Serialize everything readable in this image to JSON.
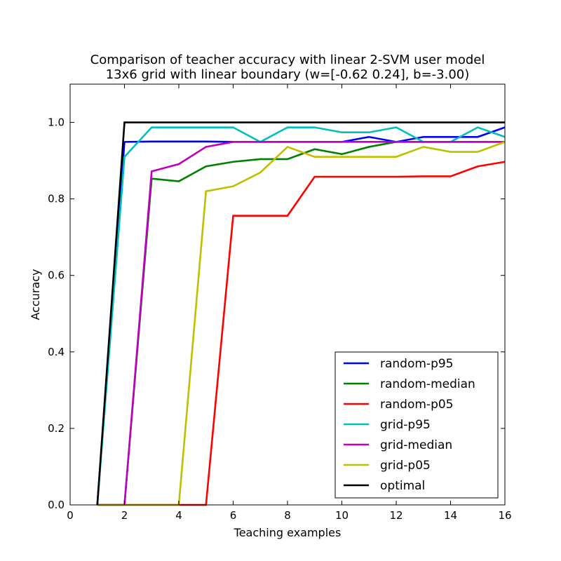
{
  "chart_data": {
    "type": "line",
    "title": "Comparison of teacher accuracy with linear 2-SVM user model",
    "subtitle": "13x6 grid with linear boundary (w=[-0.62  0.24], b=-3.00)",
    "xlabel": "Teaching examples",
    "ylabel": "Accuracy",
    "xlim": [
      0,
      16
    ],
    "ylim": [
      0.0,
      1.1
    ],
    "xticks": [
      0,
      2,
      4,
      6,
      8,
      10,
      12,
      14,
      16
    ],
    "xtick_labels": [
      "0",
      "2",
      "4",
      "6",
      "8",
      "10",
      "12",
      "14",
      "16"
    ],
    "yticks": [
      0.0,
      0.2,
      0.4,
      0.6,
      0.8,
      1.0
    ],
    "ytick_labels": [
      "0.0",
      "0.2",
      "0.4",
      "0.6",
      "0.8",
      "1.0"
    ],
    "grid": false,
    "legend_position": "lower-right",
    "x": [
      1,
      2,
      3,
      4,
      5,
      6,
      7,
      8,
      9,
      10,
      11,
      12,
      13,
      14,
      15,
      16
    ],
    "series": [
      {
        "name": "random-p95",
        "color": "#0000ff",
        "values": [
          0.0,
          0.949,
          0.95,
          0.95,
          0.95,
          0.949,
          0.949,
          0.949,
          0.949,
          0.949,
          0.962,
          0.949,
          0.962,
          0.962,
          0.962,
          0.987
        ]
      },
      {
        "name": "random-median",
        "color": "#008000",
        "values": [
          0.0,
          0.0,
          0.853,
          0.846,
          0.885,
          0.897,
          0.904,
          0.904,
          0.93,
          0.917,
          0.936,
          0.949,
          0.949,
          0.949,
          0.949,
          0.949
        ]
      },
      {
        "name": "random-p05",
        "color": "#ff0000",
        "values": [
          0.0,
          0.0,
          0.0,
          0.0,
          0.0,
          0.756,
          0.756,
          0.756,
          0.858,
          0.858,
          0.858,
          0.858,
          0.859,
          0.859,
          0.885,
          0.897
        ]
      },
      {
        "name": "grid-p95",
        "color": "#00bfbf",
        "values": [
          0.0,
          0.91,
          0.987,
          0.987,
          0.987,
          0.987,
          0.949,
          0.987,
          0.987,
          0.974,
          0.974,
          0.987,
          0.949,
          0.949,
          0.987,
          0.962
        ]
      },
      {
        "name": "grid-median",
        "color": "#bf00bf",
        "values": [
          0.0,
          0.0,
          0.872,
          0.891,
          0.936,
          0.949,
          0.949,
          0.949,
          0.949,
          0.949,
          0.949,
          0.949,
          0.949,
          0.949,
          0.949,
          0.949
        ]
      },
      {
        "name": "grid-p05",
        "color": "#bfbf00",
        "values": [
          0.0,
          0.0,
          0.0,
          0.0,
          0.82,
          0.833,
          0.869,
          0.936,
          0.91,
          0.91,
          0.91,
          0.91,
          0.936,
          0.923,
          0.923,
          0.949
        ]
      },
      {
        "name": "optimal",
        "color": "#000000",
        "values": [
          0.0,
          1.0,
          1.0,
          1.0,
          1.0,
          1.0,
          1.0,
          1.0,
          1.0,
          1.0,
          1.0,
          1.0,
          1.0,
          1.0,
          1.0,
          1.0
        ]
      }
    ]
  }
}
